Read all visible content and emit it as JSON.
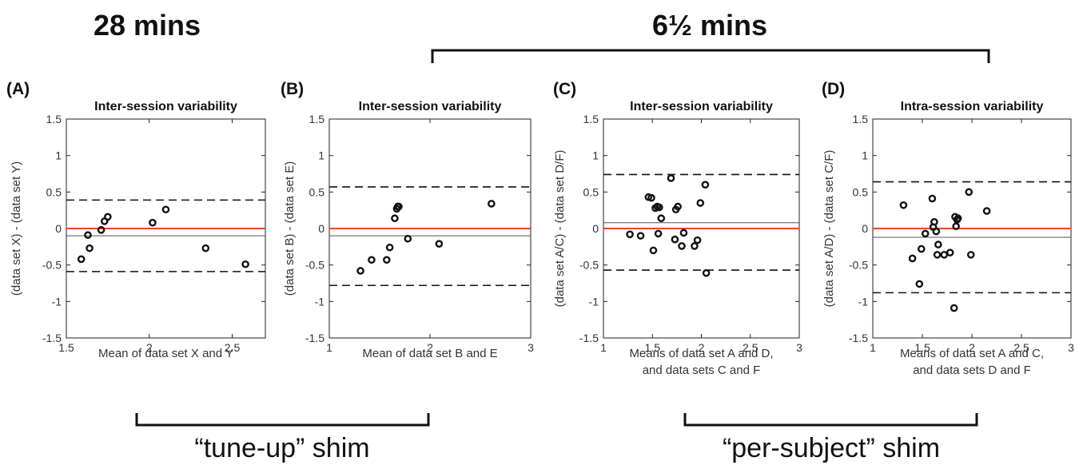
{
  "annotations": {
    "time_left": "28 mins",
    "time_right": "6½ mins",
    "shim_left": "“tune-up” shim",
    "shim_right": "“per-subject” shim"
  },
  "colors": {
    "zero_line": "#e8461e",
    "mean_line": "#555555",
    "loa_line": "#111111",
    "points": "#111111"
  },
  "chart_data": [
    {
      "type": "scatter",
      "panel": "(A)",
      "title": "Inter-session variability",
      "xlabel": [
        "Mean of data set X and Y"
      ],
      "ylabel": "(data set X) - (data set Y)",
      "xlim": [
        1.5,
        2.7
      ],
      "ylim": [
        -1.5,
        1.5
      ],
      "xticks": [
        1.5,
        2,
        2.5
      ],
      "yticks": [
        1.5,
        1,
        0.5,
        0,
        -0.5,
        -1,
        -1.5
      ],
      "mean_diff": -0.1,
      "loa_upper": 0.39,
      "loa_lower": -0.59,
      "points": [
        {
          "x": 1.59,
          "y": -0.42
        },
        {
          "x": 1.63,
          "y": -0.09
        },
        {
          "x": 1.64,
          "y": -0.27
        },
        {
          "x": 1.71,
          "y": -0.02
        },
        {
          "x": 1.73,
          "y": 0.1
        },
        {
          "x": 1.75,
          "y": 0.16
        },
        {
          "x": 2.02,
          "y": 0.08
        },
        {
          "x": 2.1,
          "y": 0.26
        },
        {
          "x": 2.34,
          "y": -0.27
        },
        {
          "x": 2.58,
          "y": -0.49
        }
      ]
    },
    {
      "type": "scatter",
      "panel": "(B)",
      "title": "Inter-session variability",
      "xlabel": [
        "Mean of data set B and E"
      ],
      "ylabel": "(data set B) - (data set E)",
      "xlim": [
        1,
        3
      ],
      "ylim": [
        -1.5,
        1.5
      ],
      "xticks": [
        1,
        2,
        3
      ],
      "yticks": [
        1.5,
        1,
        0.5,
        0,
        -0.5,
        -1,
        -1.5
      ],
      "mean_diff": -0.1,
      "loa_upper": 0.57,
      "loa_lower": -0.78,
      "points": [
        {
          "x": 1.31,
          "y": -0.58
        },
        {
          "x": 1.42,
          "y": -0.43
        },
        {
          "x": 1.57,
          "y": -0.43
        },
        {
          "x": 1.6,
          "y": -0.26
        },
        {
          "x": 1.65,
          "y": 0.14
        },
        {
          "x": 1.67,
          "y": 0.27
        },
        {
          "x": 1.68,
          "y": 0.3
        },
        {
          "x": 1.69,
          "y": 0.3
        },
        {
          "x": 1.78,
          "y": -0.14
        },
        {
          "x": 2.09,
          "y": -0.21
        },
        {
          "x": 2.61,
          "y": 0.34
        }
      ]
    },
    {
      "type": "scatter",
      "panel": "(C)",
      "title": "Inter-session variability",
      "xlabel": [
        "Means of data set A and D,",
        "and data sets C and F"
      ],
      "ylabel": "(data set A/C) - (data set D/F)",
      "xlim": [
        1,
        3
      ],
      "ylim": [
        -1.5,
        1.5
      ],
      "xticks": [
        1,
        1.5,
        2,
        2.5,
        3
      ],
      "yticks": [
        1.5,
        1,
        0.5,
        0,
        -0.5,
        -1,
        -1.5
      ],
      "mean_diff": 0.08,
      "loa_upper": 0.74,
      "loa_lower": -0.57,
      "points": [
        {
          "x": 1.27,
          "y": -0.08
        },
        {
          "x": 1.38,
          "y": -0.1
        },
        {
          "x": 1.46,
          "y": 0.43
        },
        {
          "x": 1.49,
          "y": 0.42
        },
        {
          "x": 1.51,
          "y": -0.3
        },
        {
          "x": 1.53,
          "y": 0.28
        },
        {
          "x": 1.55,
          "y": 0.3
        },
        {
          "x": 1.56,
          "y": -0.07
        },
        {
          "x": 1.57,
          "y": 0.29
        },
        {
          "x": 1.59,
          "y": 0.14
        },
        {
          "x": 1.69,
          "y": 0.69
        },
        {
          "x": 1.73,
          "y": -0.15
        },
        {
          "x": 1.74,
          "y": 0.26
        },
        {
          "x": 1.76,
          "y": 0.3
        },
        {
          "x": 1.8,
          "y": -0.24
        },
        {
          "x": 1.82,
          "y": -0.06
        },
        {
          "x": 1.93,
          "y": -0.24
        },
        {
          "x": 1.96,
          "y": -0.16
        },
        {
          "x": 1.99,
          "y": 0.35
        },
        {
          "x": 2.04,
          "y": 0.6
        },
        {
          "x": 2.05,
          "y": -0.61
        }
      ]
    },
    {
      "type": "scatter",
      "panel": "(D)",
      "title": "Intra-session variability",
      "xlabel": [
        "Means of data set A and C,",
        "and data sets D and F"
      ],
      "ylabel": "(data set A/D) - (data set C/F)",
      "xlim": [
        1,
        3
      ],
      "ylim": [
        -1.5,
        1.5
      ],
      "xticks": [
        1,
        1.5,
        2,
        2.5,
        3
      ],
      "yticks": [
        1.5,
        1,
        0.5,
        0,
        -0.5,
        -1,
        -1.5
      ],
      "mean_diff": -0.12,
      "loa_upper": 0.64,
      "loa_lower": -0.88,
      "points": [
        {
          "x": 1.31,
          "y": 0.32
        },
        {
          "x": 1.4,
          "y": -0.41
        },
        {
          "x": 1.47,
          "y": -0.76
        },
        {
          "x": 1.49,
          "y": -0.28
        },
        {
          "x": 1.53,
          "y": -0.07
        },
        {
          "x": 1.6,
          "y": 0.41
        },
        {
          "x": 1.61,
          "y": 0.02
        },
        {
          "x": 1.62,
          "y": 0.09
        },
        {
          "x": 1.64,
          "y": -0.04
        },
        {
          "x": 1.65,
          "y": -0.36
        },
        {
          "x": 1.66,
          "y": -0.22
        },
        {
          "x": 1.72,
          "y": -0.36
        },
        {
          "x": 1.78,
          "y": -0.33
        },
        {
          "x": 1.82,
          "y": -1.09
        },
        {
          "x": 1.83,
          "y": 0.16
        },
        {
          "x": 1.84,
          "y": 0.03
        },
        {
          "x": 1.85,
          "y": 0.12
        },
        {
          "x": 1.86,
          "y": 0.14
        },
        {
          "x": 1.97,
          "y": 0.5
        },
        {
          "x": 1.99,
          "y": -0.36
        },
        {
          "x": 2.15,
          "y": 0.24
        }
      ]
    }
  ]
}
